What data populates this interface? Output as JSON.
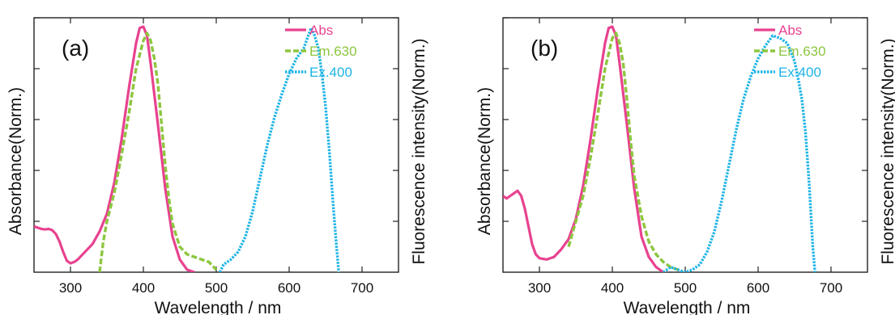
{
  "colors": {
    "abs": "#e8428f",
    "em": "#8dc63f",
    "ex": "#1eb4e6",
    "axis": "#222222"
  },
  "chart_data": [
    {
      "type": "line",
      "panel_label": "(a)",
      "title": "",
      "xlabel": "Wavelength / nm",
      "ylabel_left": "Absorbance(Norm.)",
      "ylabel_right": "Fluorescence intensity(Norm.)",
      "xlim": [
        250,
        750
      ],
      "ylim": [
        0,
        1
      ],
      "x_ticks": [
        300,
        400,
        500,
        600,
        700
      ],
      "y_ticks_unlabeled": [
        0.2,
        0.4,
        0.6,
        0.8,
        1.0
      ],
      "grid": false,
      "legend_position": "top-right",
      "series": [
        {
          "name": "Abs",
          "style": "solid",
          "points": [
            [
              250,
              0.18
            ],
            [
              255,
              0.175
            ],
            [
              260,
              0.17
            ],
            [
              265,
              0.168
            ],
            [
              270,
              0.17
            ],
            [
              275,
              0.165
            ],
            [
              280,
              0.15
            ],
            [
              285,
              0.12
            ],
            [
              290,
              0.08
            ],
            [
              295,
              0.045
            ],
            [
              300,
              0.035
            ],
            [
              305,
              0.04
            ],
            [
              310,
              0.05
            ],
            [
              320,
              0.08
            ],
            [
              330,
              0.11
            ],
            [
              340,
              0.16
            ],
            [
              350,
              0.23
            ],
            [
              360,
              0.35
            ],
            [
              370,
              0.52
            ],
            [
              380,
              0.72
            ],
            [
              390,
              0.9
            ],
            [
              395,
              0.96
            ],
            [
              400,
              0.965
            ],
            [
              405,
              0.93
            ],
            [
              410,
              0.82
            ],
            [
              420,
              0.58
            ],
            [
              430,
              0.33
            ],
            [
              440,
              0.14
            ],
            [
              450,
              0.05
            ],
            [
              460,
              0.01
            ],
            [
              470,
              0.0
            ]
          ]
        },
        {
          "name": "Em.630",
          "style": "dashed",
          "points": [
            [
              340,
              0.0
            ],
            [
              345,
              0.12
            ],
            [
              350,
              0.2
            ],
            [
              360,
              0.31
            ],
            [
              370,
              0.46
            ],
            [
              380,
              0.62
            ],
            [
              390,
              0.8
            ],
            [
              400,
              0.91
            ],
            [
              405,
              0.94
            ],
            [
              410,
              0.91
            ],
            [
              415,
              0.84
            ],
            [
              420,
              0.74
            ],
            [
              425,
              0.58
            ],
            [
              430,
              0.42
            ],
            [
              435,
              0.29
            ],
            [
              440,
              0.19
            ],
            [
              450,
              0.1
            ],
            [
              460,
              0.07
            ],
            [
              470,
              0.06
            ],
            [
              480,
              0.05
            ],
            [
              490,
              0.04
            ],
            [
              500,
              0.01
            ]
          ]
        },
        {
          "name": "Ex.400",
          "style": "dotted",
          "points": [
            [
              505,
              0.0
            ],
            [
              510,
              0.03
            ],
            [
              520,
              0.05
            ],
            [
              530,
              0.08
            ],
            [
              540,
              0.14
            ],
            [
              550,
              0.24
            ],
            [
              560,
              0.37
            ],
            [
              570,
              0.5
            ],
            [
              580,
              0.61
            ],
            [
              590,
              0.7
            ],
            [
              600,
              0.78
            ],
            [
              610,
              0.84
            ],
            [
              620,
              0.88
            ],
            [
              625,
              0.92
            ],
            [
              630,
              0.96
            ],
            [
              635,
              0.93
            ],
            [
              640,
              0.88
            ],
            [
              645,
              0.78
            ],
            [
              650,
              0.65
            ],
            [
              655,
              0.48
            ],
            [
              660,
              0.28
            ],
            [
              665,
              0.1
            ],
            [
              668,
              0.0
            ]
          ]
        }
      ]
    },
    {
      "type": "line",
      "panel_label": "(b)",
      "title": "",
      "xlabel": "Wavelength / nm",
      "ylabel_left": "Absorbance(Norm.)",
      "ylabel_right": "Fluorescence intensity(Norm.)",
      "xlim": [
        250,
        750
      ],
      "ylim": [
        0,
        1
      ],
      "x_ticks": [
        300,
        400,
        500,
        600,
        700
      ],
      "y_ticks_unlabeled": [
        0.2,
        0.4,
        0.6,
        0.8,
        1.0
      ],
      "grid": false,
      "legend_position": "top-right",
      "series": [
        {
          "name": "Abs",
          "style": "solid",
          "points": [
            [
              250,
              0.3
            ],
            [
              255,
              0.29
            ],
            [
              260,
              0.3
            ],
            [
              265,
              0.31
            ],
            [
              270,
              0.32
            ],
            [
              275,
              0.3
            ],
            [
              280,
              0.25
            ],
            [
              285,
              0.18
            ],
            [
              290,
              0.11
            ],
            [
              295,
              0.07
            ],
            [
              300,
              0.055
            ],
            [
              310,
              0.05
            ],
            [
              320,
              0.06
            ],
            [
              330,
              0.09
            ],
            [
              340,
              0.13
            ],
            [
              350,
              0.21
            ],
            [
              360,
              0.34
            ],
            [
              370,
              0.52
            ],
            [
              380,
              0.72
            ],
            [
              390,
              0.9
            ],
            [
              395,
              0.96
            ],
            [
              400,
              0.965
            ],
            [
              405,
              0.93
            ],
            [
              410,
              0.82
            ],
            [
              420,
              0.58
            ],
            [
              430,
              0.33
            ],
            [
              440,
              0.14
            ],
            [
              450,
              0.06
            ],
            [
              460,
              0.02
            ],
            [
              470,
              0.0
            ]
          ]
        },
        {
          "name": "Em.630",
          "style": "dashed",
          "points": [
            [
              340,
              0.1
            ],
            [
              345,
              0.15
            ],
            [
              350,
              0.2
            ],
            [
              360,
              0.3
            ],
            [
              370,
              0.45
            ],
            [
              380,
              0.62
            ],
            [
              390,
              0.8
            ],
            [
              400,
              0.92
            ],
            [
              405,
              0.94
            ],
            [
              410,
              0.9
            ],
            [
              415,
              0.82
            ],
            [
              420,
              0.68
            ],
            [
              425,
              0.52
            ],
            [
              430,
              0.38
            ],
            [
              440,
              0.22
            ],
            [
              450,
              0.12
            ],
            [
              460,
              0.07
            ],
            [
              470,
              0.04
            ],
            [
              480,
              0.02
            ],
            [
              490,
              0.01
            ]
          ]
        },
        {
          "name": "Ex.400",
          "style": "dotted",
          "points": [
            [
              470,
              0.0
            ],
            [
              480,
              0.02
            ],
            [
              490,
              0.01
            ],
            [
              500,
              0.0
            ],
            [
              510,
              0.01
            ],
            [
              520,
              0.03
            ],
            [
              530,
              0.08
            ],
            [
              540,
              0.16
            ],
            [
              550,
              0.28
            ],
            [
              560,
              0.42
            ],
            [
              570,
              0.56
            ],
            [
              580,
              0.68
            ],
            [
              590,
              0.77
            ],
            [
              600,
              0.84
            ],
            [
              610,
              0.89
            ],
            [
              620,
              0.93
            ],
            [
              630,
              0.92
            ],
            [
              640,
              0.9
            ],
            [
              650,
              0.83
            ],
            [
              655,
              0.76
            ],
            [
              660,
              0.68
            ],
            [
              665,
              0.55
            ],
            [
              670,
              0.35
            ],
            [
              675,
              0.1
            ],
            [
              678,
              0.0
            ]
          ]
        }
      ]
    }
  ]
}
